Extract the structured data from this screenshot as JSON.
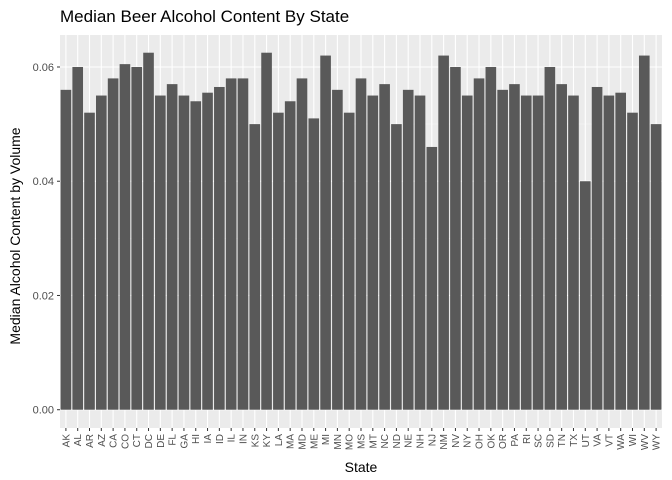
{
  "chart_data": {
    "type": "bar",
    "title": "Median Beer Alcohol Content By State",
    "xlabel": "State",
    "ylabel": "Median Alcohol Content by Volume",
    "categories": [
      "AK",
      "AL",
      "AR",
      "AZ",
      "CA",
      "CO",
      "CT",
      "DC",
      "DE",
      "FL",
      "GA",
      "HI",
      "IA",
      "ID",
      "IL",
      "IN",
      "KS",
      "KY",
      "LA",
      "MA",
      "MD",
      "ME",
      "MI",
      "MN",
      "MO",
      "MS",
      "MT",
      "NC",
      "ND",
      "NE",
      "NH",
      "NJ",
      "NM",
      "NV",
      "NY",
      "OH",
      "OK",
      "OR",
      "PA",
      "RI",
      "SC",
      "SD",
      "TN",
      "TX",
      "UT",
      "VA",
      "VT",
      "WA",
      "WI",
      "WV",
      "WY"
    ],
    "values": [
      0.056,
      0.06,
      0.052,
      0.055,
      0.058,
      0.0605,
      0.06,
      0.0625,
      0.055,
      0.057,
      0.055,
      0.054,
      0.0555,
      0.0565,
      0.058,
      0.058,
      0.05,
      0.0625,
      0.052,
      0.054,
      0.058,
      0.051,
      0.062,
      0.056,
      0.052,
      0.058,
      0.055,
      0.057,
      0.05,
      0.056,
      0.055,
      0.046,
      0.062,
      0.06,
      0.055,
      0.058,
      0.06,
      0.056,
      0.057,
      0.055,
      0.055,
      0.06,
      0.057,
      0.055,
      0.04,
      0.0565,
      0.055,
      0.0555,
      0.052,
      0.062,
      0.05
    ],
    "yticks": [
      0.0,
      0.02,
      0.04,
      0.06
    ],
    "ytick_labels": [
      "0.00",
      "0.02",
      "0.04",
      "0.06"
    ],
    "ylim": [
      -0.0032,
      0.0656
    ],
    "grid": true,
    "legend": "none",
    "colors": {
      "bar": "#595959",
      "panel": "#ebebeb",
      "grid_major": "#ffffff",
      "grid_minor": "#f5f5f5",
      "tick": "#333333"
    }
  }
}
